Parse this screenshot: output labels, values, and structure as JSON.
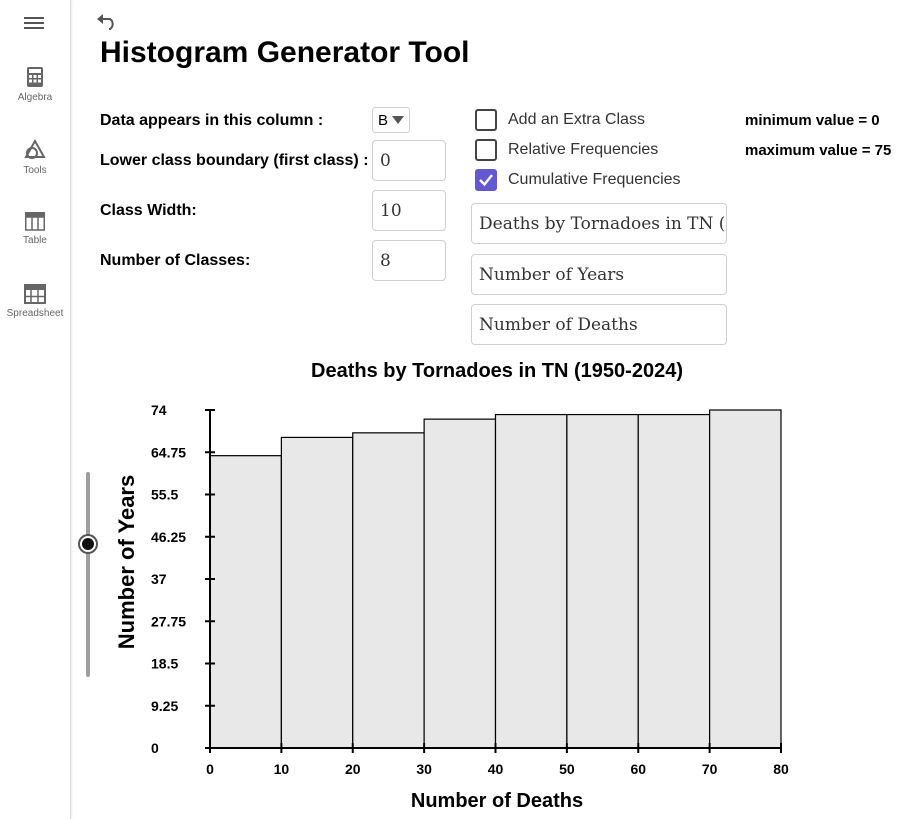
{
  "sidebar": {
    "items": [
      {
        "label": "Algebra",
        "icon": "calculator-icon"
      },
      {
        "label": "Tools",
        "icon": "shapes-icon"
      },
      {
        "label": "Table",
        "icon": "table-icon"
      },
      {
        "label": "Spreadsheet",
        "icon": "spreadsheet-icon"
      }
    ]
  },
  "app": {
    "title": "Histogram Generator Tool"
  },
  "form": {
    "column_label": "Data appears in this column :",
    "column_value": "B",
    "lower_boundary_label": "Lower class boundary (first class) :",
    "lower_boundary_value": "0",
    "class_width_label": "Class Width:",
    "class_width_value": "10",
    "num_classes_label": "Number of Classes:",
    "num_classes_value": "8"
  },
  "options": {
    "extra_class": {
      "label": "Add an Extra Class",
      "checked": false
    },
    "relative": {
      "label": "Relative Frequencies",
      "checked": false
    },
    "cumulative": {
      "label": "Cumulative Frequencies",
      "checked": true
    }
  },
  "info": {
    "min_text": "minimum value = 0",
    "max_text": "maximum value = 75"
  },
  "text_inputs": {
    "title_value": "Deaths by Tornadoes in TN (",
    "ylabel_value": "Number of Years",
    "xlabel_value": "Number of Deaths"
  },
  "colors": {
    "accent": "#6557d2",
    "bar_fill": "#e8e8e8",
    "bar_stroke": "#000000"
  },
  "slider": {
    "value_fraction": 0.35
  },
  "chart_data": {
    "type": "bar",
    "title": "Deaths by Tornadoes in TN (1950-2024)",
    "xlabel": "Number of Deaths",
    "ylabel": "Number of Years",
    "bin_edges": [
      0,
      10,
      20,
      30,
      40,
      50,
      60,
      70,
      80
    ],
    "values": [
      64,
      68,
      69,
      72,
      73,
      73,
      73,
      74
    ],
    "ylim": [
      0,
      74
    ],
    "yticks": [
      "0",
      "9.25",
      "18.5",
      "27.75",
      "37",
      "46.25",
      "55.5",
      "64.75",
      "74"
    ],
    "xticks": [
      "0",
      "10",
      "20",
      "30",
      "40",
      "50",
      "60",
      "70",
      "80"
    ],
    "grid": false
  }
}
